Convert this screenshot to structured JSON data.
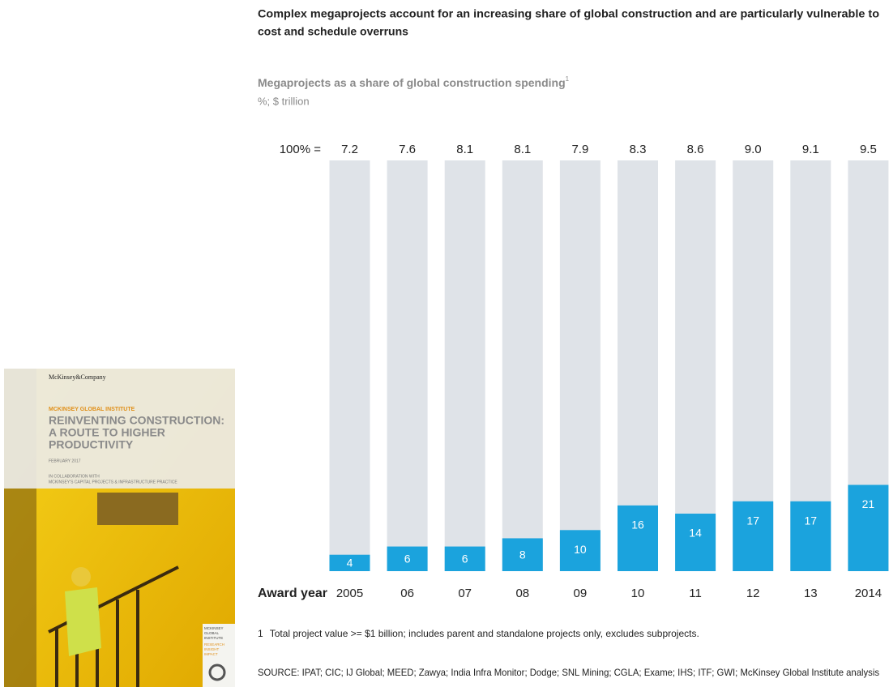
{
  "chart_data": {
    "type": "bar",
    "title": "Complex megaprojects account for an increasing share of global construction and are particularly vulnerable to",
    "title_line2": "cost and schedule overruns",
    "subtitle": "Megaprojects as a share of global construction spending",
    "units": "%; $ trillion",
    "totals_label": "100% =",
    "totals": [
      7.2,
      7.6,
      8.1,
      8.1,
      7.9,
      8.3,
      8.6,
      {
        "value": 9,
        "label": "9.0"
      },
      9.1,
      9.5
    ],
    "x_label": "Award year",
    "categories": [
      "2005",
      "06",
      "07",
      "08",
      "09",
      "10",
      "11",
      "12",
      "13",
      "2014"
    ],
    "values": [
      4,
      6,
      6,
      8,
      10,
      16,
      14,
      17,
      17,
      21
    ],
    "color": "#1ba3dd",
    "background_color": "#dfe3e8",
    "ylim": [
      0,
      100
    ],
    "footnote": {
      "marker": "1",
      "text": "Total project value >= $1 billion; includes parent and standalone projects only, excludes subprojects."
    },
    "source": "SOURCE:  IPAT; CIC; IJ Global; MEED; Zawya; India Infra Monitor; Dodge; SNL Mining; CGLA; Exame; IHS; ITF; GWI; McKinsey Global Institute analysis"
  },
  "cover": {
    "publisher": "McKinsey&Company",
    "institute": "MCKINSEY GLOBAL INSTITUTE",
    "title_lines": [
      "REINVENTING CONSTRUCTION:",
      "A ROUTE TO HIGHER",
      "PRODUCTIVITY"
    ],
    "date": "FEBRUARY 2017",
    "collab_lines": [
      "IN COLLABORATION WITH",
      "MCKINSEY'S CAPITAL PROJECTS & INFRASTRUCTURE PRACTICE"
    ],
    "badge_lines": [
      "MCKINSEY",
      "GLOBAL",
      "INSTITUTE"
    ],
    "tag_lines": [
      "RESEARCH",
      "INSIGHT",
      "IMPACT"
    ]
  }
}
